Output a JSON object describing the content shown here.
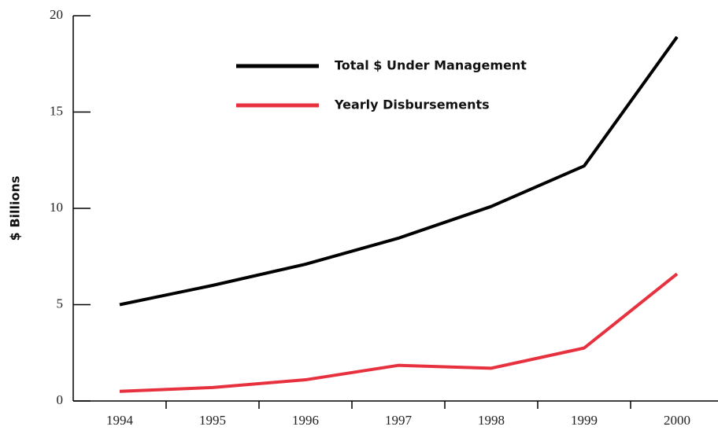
{
  "chart_data": {
    "type": "line",
    "y_label": "$ Billions",
    "categories": [
      "1994",
      "1995",
      "1996",
      "1997",
      "1998",
      "1999",
      "2000"
    ],
    "series": [
      {
        "name": "Total $ Under Management",
        "color": "#000000",
        "values": [
          5.0,
          6.0,
          7.1,
          8.45,
          10.1,
          12.2,
          18.9
        ]
      },
      {
        "name": "Yearly Disbursements",
        "color": "#e8313f",
        "values": [
          0.5,
          0.7,
          1.1,
          1.85,
          1.7,
          2.75,
          6.6
        ]
      }
    ],
    "ylim": [
      0,
      20
    ],
    "yticks": [
      0,
      5,
      10,
      15,
      20
    ]
  }
}
